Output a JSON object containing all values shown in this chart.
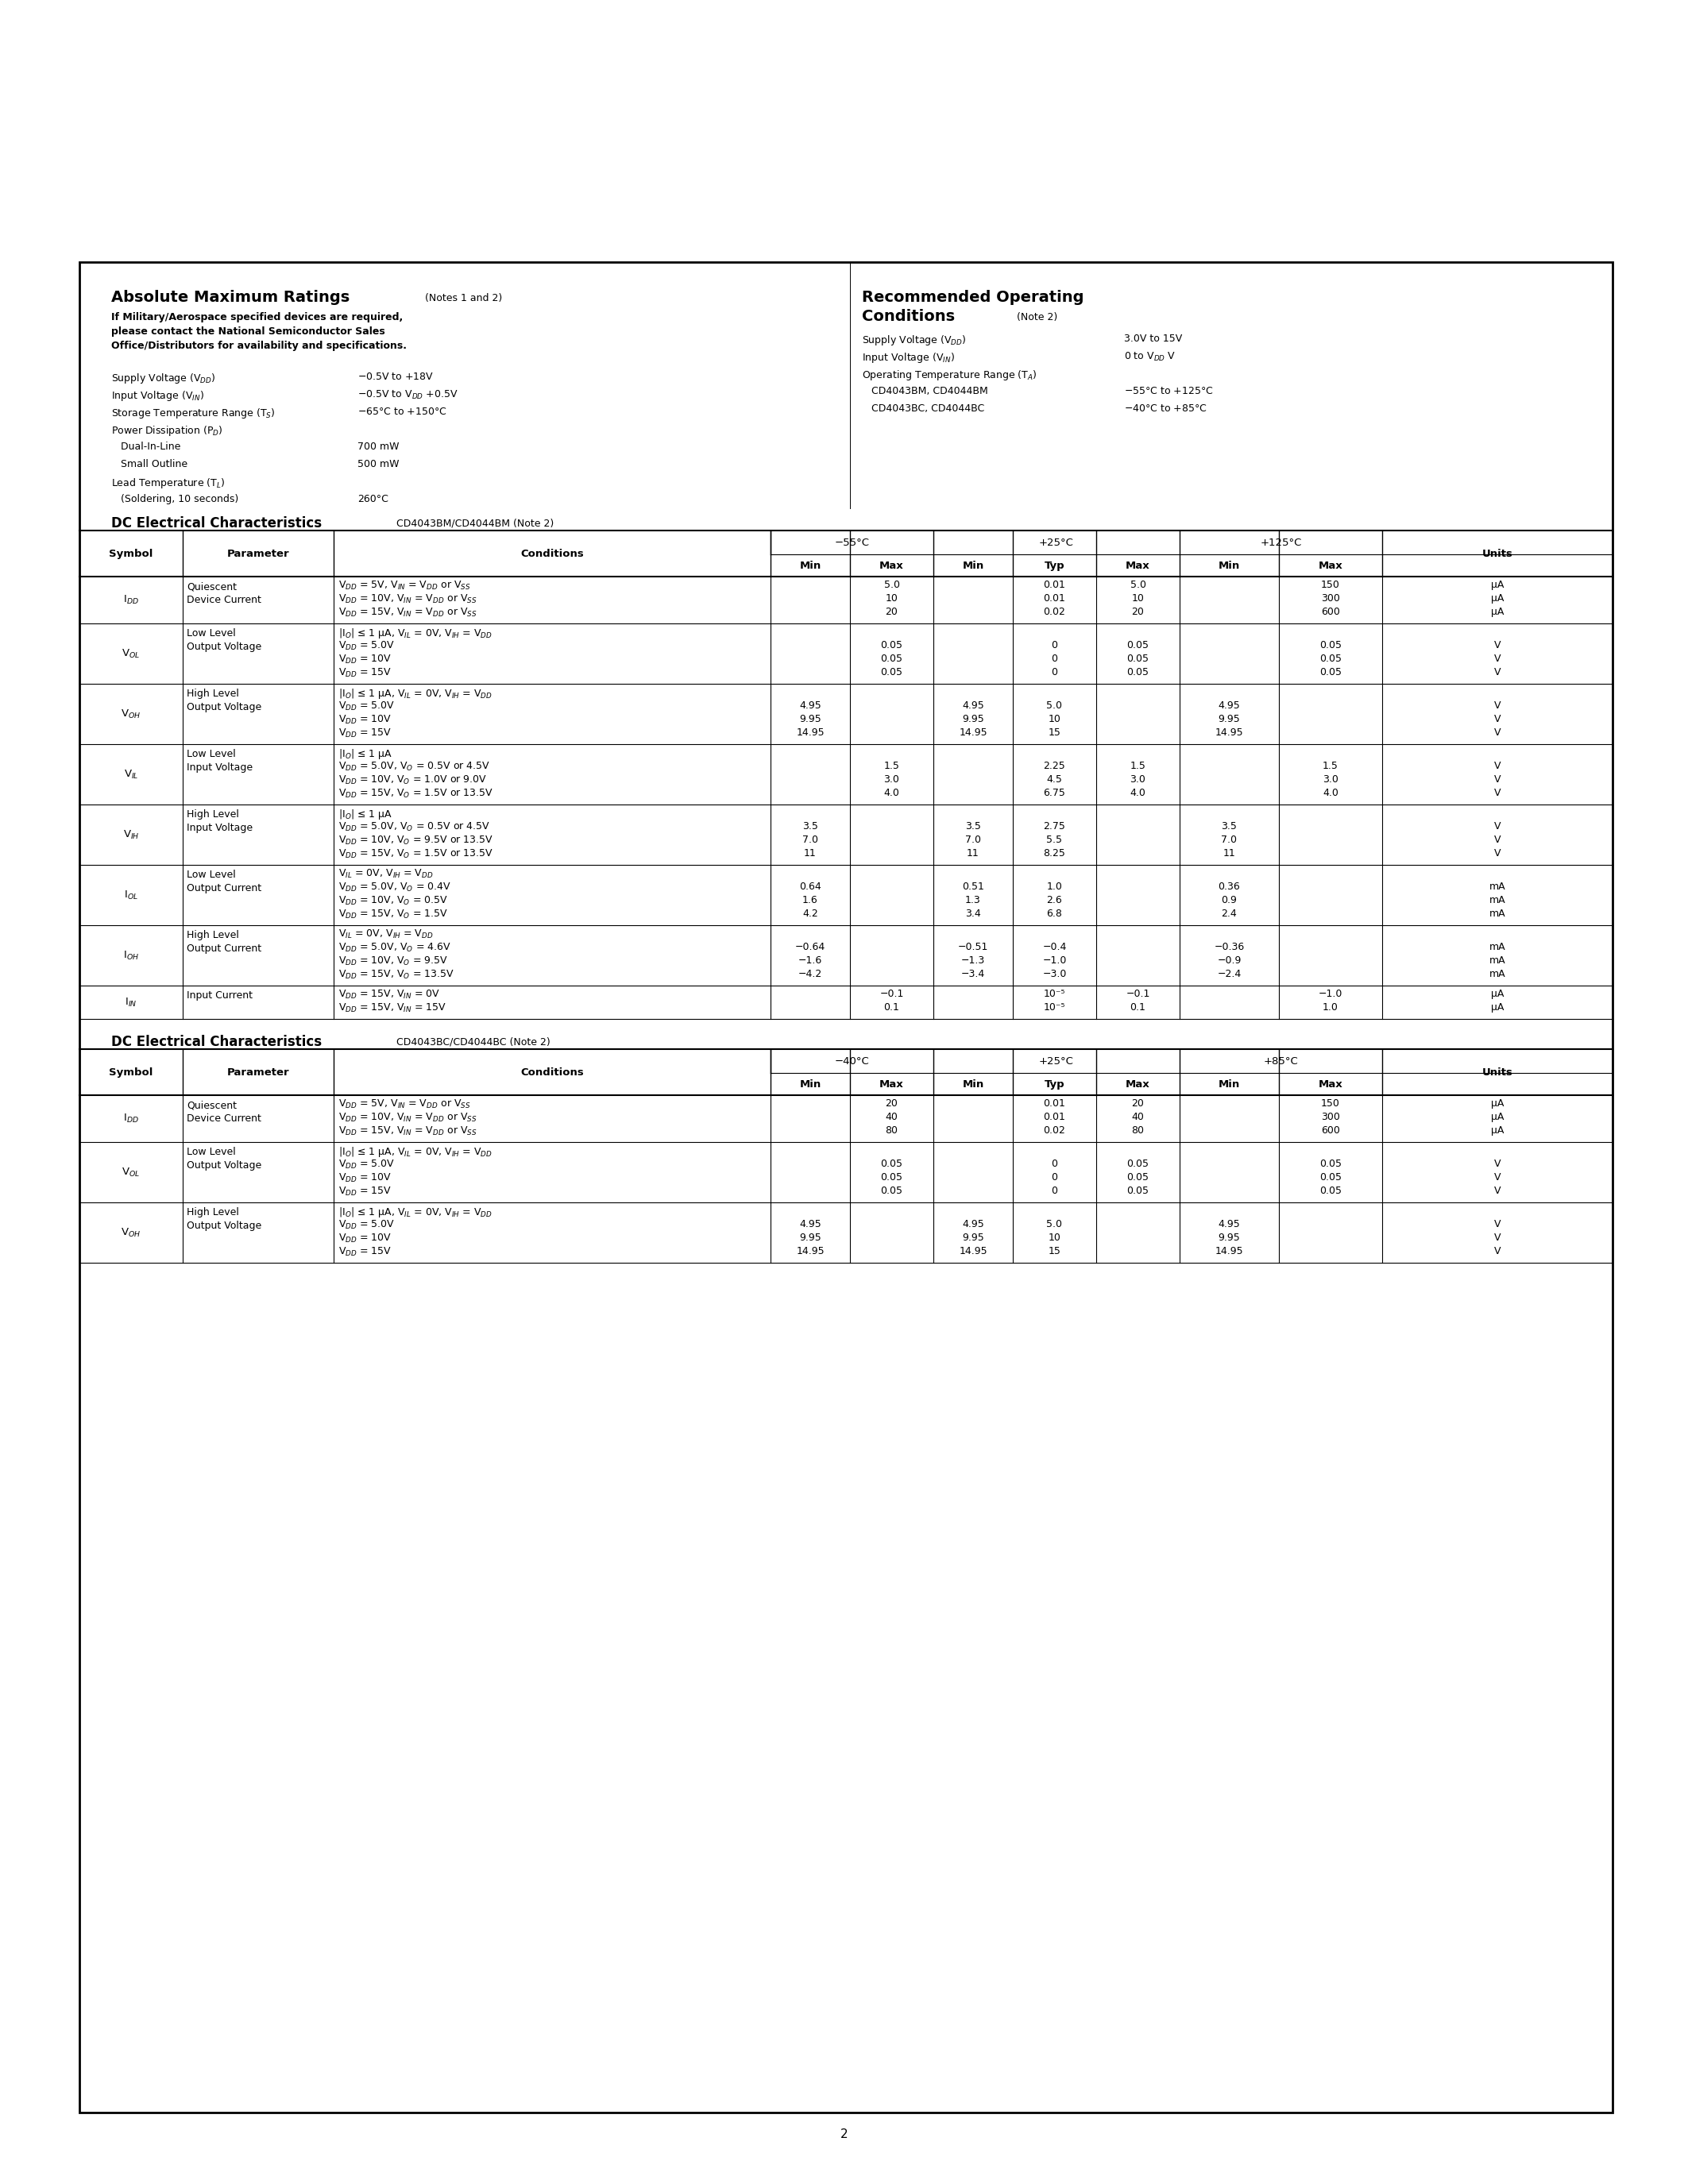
{
  "page_bg": "#ffffff",
  "border_color": "#000000",
  "text_color": "#000000",
  "page_number": "2",
  "table1_header_temps": [
    "−55°C",
    "+25°C",
    "+125°C"
  ],
  "table2_header_temps": [
    "−40°C",
    "+25°C",
    "+85°C"
  ],
  "table1_rows": [
    {
      "symbol": "I$_{DD}$",
      "parameter": "Quiescent\nDevice Current",
      "conditions": [
        "V$_{DD}$ = 5V, V$_{IN}$ = V$_{DD}$ or V$_{SS}$",
        "V$_{DD}$ = 10V, V$_{IN}$ = V$_{DD}$ or V$_{SS}$",
        "V$_{DD}$ = 15V, V$_{IN}$ = V$_{DD}$ or V$_{SS}$"
      ],
      "m55_min": [
        "",
        "",
        ""
      ],
      "m55_max": [
        "5.0",
        "10",
        "20"
      ],
      "p25_min": [
        "",
        "",
        ""
      ],
      "p25_typ": [
        "0.01",
        "0.01",
        "0.02"
      ],
      "p25_max": [
        "5.0",
        "10",
        "20"
      ],
      "p125_min": [
        "",
        "",
        ""
      ],
      "p125_max": [
        "150",
        "300",
        "600"
      ],
      "units": [
        "μA",
        "μA",
        "μA"
      ]
    },
    {
      "symbol": "V$_{OL}$",
      "parameter": "Low Level\nOutput Voltage",
      "conditions": [
        "|I$_O$| ≤ 1 μA, V$_{IL}$ = 0V, V$_{IH}$ = V$_{DD}$",
        "V$_{DD}$ = 5.0V",
        "V$_{DD}$ = 10V",
        "V$_{DD}$ = 15V"
      ],
      "m55_min": [
        "",
        "",
        "",
        ""
      ],
      "m55_max": [
        "",
        "0.05",
        "0.05",
        "0.05"
      ],
      "p25_min": [
        "",
        "",
        "",
        ""
      ],
      "p25_typ": [
        "",
        "0",
        "0",
        "0"
      ],
      "p25_max": [
        "",
        "0.05",
        "0.05",
        "0.05"
      ],
      "p125_min": [
        "",
        "",
        "",
        ""
      ],
      "p125_max": [
        "",
        "0.05",
        "0.05",
        "0.05"
      ],
      "units": [
        "",
        "V",
        "V",
        "V"
      ]
    },
    {
      "symbol": "V$_{OH}$",
      "parameter": "High Level\nOutput Voltage",
      "conditions": [
        "|I$_O$| ≤ 1 μA, V$_{IL}$ = 0V, V$_{IH}$ = V$_{DD}$",
        "V$_{DD}$ = 5.0V",
        "V$_{DD}$ = 10V",
        "V$_{DD}$ = 15V"
      ],
      "m55_min": [
        "",
        "4.95",
        "9.95",
        "14.95"
      ],
      "m55_max": [
        "",
        "",
        "",
        ""
      ],
      "p25_min": [
        "",
        "4.95",
        "9.95",
        "14.95"
      ],
      "p25_typ": [
        "",
        "5.0",
        "10",
        "15"
      ],
      "p25_max": [
        "",
        "",
        "",
        ""
      ],
      "p125_min": [
        "",
        "4.95",
        "9.95",
        "14.95"
      ],
      "p125_max": [
        "",
        "",
        "",
        ""
      ],
      "units": [
        "",
        "V",
        "V",
        "V"
      ]
    },
    {
      "symbol": "V$_{IL}$",
      "parameter": "Low Level\nInput Voltage",
      "conditions": [
        "|I$_O$| ≤ 1 μA",
        "V$_{DD}$ = 5.0V, V$_O$ = 0.5V or 4.5V",
        "V$_{DD}$ = 10V, V$_O$ = 1.0V or 9.0V",
        "V$_{DD}$ = 15V, V$_O$ = 1.5V or 13.5V"
      ],
      "m55_min": [
        "",
        "",
        "",
        ""
      ],
      "m55_max": [
        "",
        "1.5",
        "3.0",
        "4.0"
      ],
      "p25_min": [
        "",
        "",
        "",
        ""
      ],
      "p25_typ": [
        "",
        "2.25",
        "4.5",
        "6.75"
      ],
      "p25_max": [
        "",
        "1.5",
        "3.0",
        "4.0"
      ],
      "p125_min": [
        "",
        "",
        "",
        ""
      ],
      "p125_max": [
        "",
        "1.5",
        "3.0",
        "4.0"
      ],
      "units": [
        "",
        "V",
        "V",
        "V"
      ]
    },
    {
      "symbol": "V$_{IH}$",
      "parameter": "High Level\nInput Voltage",
      "conditions": [
        "|I$_O$| ≤ 1 μA",
        "V$_{DD}$ = 5.0V, V$_O$ = 0.5V or 4.5V",
        "V$_{DD}$ = 10V, V$_O$ = 9.5V or 13.5V",
        "V$_{DD}$ = 15V, V$_O$ = 1.5V or 13.5V"
      ],
      "m55_min": [
        "",
        "3.5",
        "7.0",
        "11"
      ],
      "m55_max": [
        "",
        "",
        "",
        ""
      ],
      "p25_min": [
        "",
        "3.5",
        "7.0",
        "11"
      ],
      "p25_typ": [
        "",
        "2.75",
        "5.5",
        "8.25"
      ],
      "p25_max": [
        "",
        "",
        "",
        ""
      ],
      "p125_min": [
        "",
        "3.5",
        "7.0",
        "11"
      ],
      "p125_max": [
        "",
        "",
        "",
        ""
      ],
      "units": [
        "",
        "V",
        "V",
        "V"
      ]
    },
    {
      "symbol": "I$_{OL}$",
      "parameter": "Low Level\nOutput Current",
      "conditions": [
        "V$_{IL}$ = 0V, V$_{IH}$ = V$_{DD}$",
        "V$_{DD}$ = 5.0V, V$_O$ = 0.4V",
        "V$_{DD}$ = 10V, V$_O$ = 0.5V",
        "V$_{DD}$ = 15V, V$_O$ = 1.5V"
      ],
      "m55_min": [
        "",
        "0.64",
        "1.6",
        "4.2"
      ],
      "m55_max": [
        "",
        "",
        "",
        ""
      ],
      "p25_min": [
        "",
        "0.51",
        "1.3",
        "3.4"
      ],
      "p25_typ": [
        "",
        "1.0",
        "2.6",
        "6.8"
      ],
      "p25_max": [
        "",
        "",
        "",
        ""
      ],
      "p125_min": [
        "",
        "0.36",
        "0.9",
        "2.4"
      ],
      "p125_max": [
        "",
        "",
        "",
        ""
      ],
      "units": [
        "",
        "mA",
        "mA",
        "mA"
      ]
    },
    {
      "symbol": "I$_{OH}$",
      "parameter": "High Level\nOutput Current",
      "conditions": [
        "V$_{IL}$ = 0V, V$_{IH}$ = V$_{DD}$",
        "V$_{DD}$ = 5.0V, V$_O$ = 4.6V",
        "V$_{DD}$ = 10V, V$_O$ = 9.5V",
        "V$_{DD}$ = 15V, V$_O$ = 13.5V"
      ],
      "m55_min": [
        "",
        "−0.64",
        "−1.6",
        "−4.2"
      ],
      "m55_max": [
        "",
        "",
        "",
        ""
      ],
      "p25_min": [
        "",
        "−0.51",
        "−1.3",
        "−3.4"
      ],
      "p25_typ": [
        "",
        "−0.4",
        "−1.0",
        "−3.0"
      ],
      "p25_max": [
        "",
        "",
        "",
        ""
      ],
      "p125_min": [
        "",
        "−0.36",
        "−0.9",
        "−2.4"
      ],
      "p125_max": [
        "",
        "",
        "",
        ""
      ],
      "units": [
        "",
        "mA",
        "mA",
        "mA"
      ]
    },
    {
      "symbol": "I$_{IN}$",
      "parameter": "Input Current",
      "conditions": [
        "V$_{DD}$ = 15V, V$_{IN}$ = 0V",
        "V$_{DD}$ = 15V, V$_{IN}$ = 15V"
      ],
      "m55_min": [
        "",
        ""
      ],
      "m55_max": [
        "−0.1",
        "0.1"
      ],
      "p25_min": [
        "",
        ""
      ],
      "p25_typ": [
        "10⁻⁵",
        "10⁻⁵"
      ],
      "p25_max": [
        "−0.1",
        "0.1"
      ],
      "p125_min": [
        "",
        ""
      ],
      "p125_max": [
        "−1.0",
        "1.0"
      ],
      "units": [
        "μA",
        "μA"
      ]
    }
  ],
  "table2_rows": [
    {
      "symbol": "I$_{DD}$",
      "parameter": "Quiescent\nDevice Current",
      "conditions": [
        "V$_{DD}$ = 5V, V$_{IN}$ = V$_{DD}$ or V$_{SS}$",
        "V$_{DD}$ = 10V, V$_{IN}$ = V$_{DD}$ or V$_{SS}$",
        "V$_{DD}$ = 15V, V$_{IN}$ = V$_{DD}$ or V$_{SS}$"
      ],
      "m40_min": [
        "",
        "",
        ""
      ],
      "m40_max": [
        "20",
        "40",
        "80"
      ],
      "p25_min": [
        "",
        "",
        ""
      ],
      "p25_typ": [
        "0.01",
        "0.01",
        "0.02"
      ],
      "p25_max": [
        "20",
        "40",
        "80"
      ],
      "p85_min": [
        "",
        "",
        ""
      ],
      "p85_max": [
        "150",
        "300",
        "600"
      ],
      "units": [
        "μA",
        "μA",
        "μA"
      ]
    },
    {
      "symbol": "V$_{OL}$",
      "parameter": "Low Level\nOutput Voltage",
      "conditions": [
        "|I$_O$| ≤ 1 μA, V$_{IL}$ = 0V, V$_{IH}$ = V$_{DD}$",
        "V$_{DD}$ = 5.0V",
        "V$_{DD}$ = 10V",
        "V$_{DD}$ = 15V"
      ],
      "m40_min": [
        "",
        "",
        "",
        ""
      ],
      "m40_max": [
        "",
        "0.05",
        "0.05",
        "0.05"
      ],
      "p25_min": [
        "",
        "",
        "",
        ""
      ],
      "p25_typ": [
        "",
        "0",
        "0",
        "0"
      ],
      "p25_max": [
        "",
        "0.05",
        "0.05",
        "0.05"
      ],
      "p85_min": [
        "",
        "",
        "",
        ""
      ],
      "p85_max": [
        "",
        "0.05",
        "0.05",
        "0.05"
      ],
      "units": [
        "",
        "V",
        "V",
        "V"
      ]
    },
    {
      "symbol": "V$_{OH}$",
      "parameter": "High Level\nOutput Voltage",
      "conditions": [
        "|I$_O$| ≤ 1 μA, V$_{IL}$ = 0V, V$_{IH}$ = V$_{DD}$",
        "V$_{DD}$ = 5.0V",
        "V$_{DD}$ = 10V",
        "V$_{DD}$ = 15V"
      ],
      "m40_min": [
        "",
        "4.95",
        "9.95",
        "14.95"
      ],
      "m40_max": [
        "",
        "",
        "",
        ""
      ],
      "p25_min": [
        "",
        "4.95",
        "9.95",
        "14.95"
      ],
      "p25_typ": [
        "",
        "5.0",
        "10",
        "15"
      ],
      "p25_max": [
        "",
        "",
        "",
        ""
      ],
      "p85_min": [
        "",
        "4.95",
        "9.95",
        "14.95"
      ],
      "p85_max": [
        "",
        "",
        "",
        ""
      ],
      "units": [
        "",
        "V",
        "V",
        "V"
      ]
    }
  ]
}
